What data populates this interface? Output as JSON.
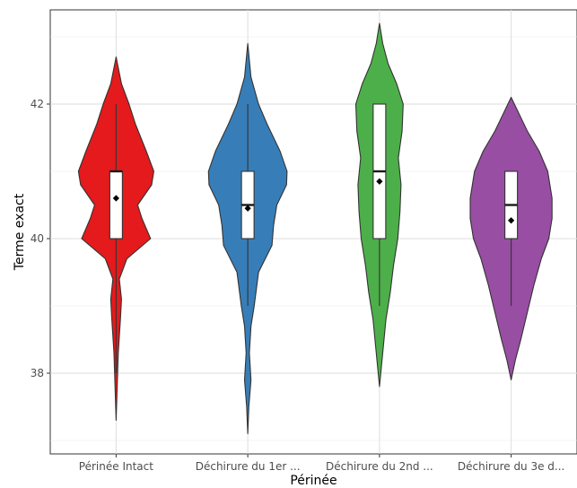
{
  "chart_data": {
    "type": "violin",
    "title": "",
    "xlabel": "Périnée",
    "ylabel": "Terme exact",
    "ylim": [
      36.8,
      43.4
    ],
    "yticks": [
      38,
      40,
      42
    ],
    "grid": true,
    "legend": "none",
    "categories": [
      "Périnée Intact",
      "Déchirure du 1er ...",
      "Déchirure du 2nd ...",
      "Déchirure du 3e d..."
    ],
    "series": [
      {
        "color": "#E41A1C",
        "range": [
          37.3,
          42.7
        ],
        "box": {
          "q1": 40,
          "median": 41,
          "q3": 41,
          "whisker_low": 38,
          "whisker_high": 42
        },
        "mean": 40.6,
        "density": [
          [
            37.3,
            0.0
          ],
          [
            37.8,
            0.02
          ],
          [
            38.3,
            0.04
          ],
          [
            38.8,
            0.08
          ],
          [
            39.1,
            0.1
          ],
          [
            39.4,
            0.06
          ],
          [
            39.7,
            0.2
          ],
          [
            40.0,
            0.64
          ],
          [
            40.3,
            0.48
          ],
          [
            40.5,
            0.4
          ],
          [
            40.8,
            0.66
          ],
          [
            41.0,
            0.7
          ],
          [
            41.3,
            0.56
          ],
          [
            41.7,
            0.36
          ],
          [
            42.0,
            0.24
          ],
          [
            42.3,
            0.1
          ],
          [
            42.7,
            0.0
          ]
        ]
      },
      {
        "color": "#377EB8",
        "range": [
          37.1,
          42.9
        ],
        "box": {
          "q1": 40,
          "median": 40.5,
          "q3": 41,
          "whisker_low": 39,
          "whisker_high": 42
        },
        "mean": 40.45,
        "density": [
          [
            37.1,
            0.0
          ],
          [
            37.5,
            0.02
          ],
          [
            37.9,
            0.06
          ],
          [
            38.3,
            0.03
          ],
          [
            38.7,
            0.06
          ],
          [
            39.0,
            0.12
          ],
          [
            39.5,
            0.2
          ],
          [
            39.9,
            0.45
          ],
          [
            40.2,
            0.48
          ],
          [
            40.5,
            0.54
          ],
          [
            40.8,
            0.72
          ],
          [
            41.0,
            0.73
          ],
          [
            41.3,
            0.6
          ],
          [
            41.7,
            0.36
          ],
          [
            42.0,
            0.2
          ],
          [
            42.4,
            0.06
          ],
          [
            42.9,
            0.0
          ]
        ]
      },
      {
        "color": "#4DAF4A",
        "range": [
          37.8,
          43.2
        ],
        "box": {
          "q1": 40,
          "median": 41,
          "q3": 42,
          "whisker_low": 39,
          "whisker_high": 42
        },
        "mean": 40.85,
        "density": [
          [
            37.8,
            0.0
          ],
          [
            38.3,
            0.06
          ],
          [
            38.8,
            0.12
          ],
          [
            39.2,
            0.2
          ],
          [
            39.6,
            0.26
          ],
          [
            40.0,
            0.34
          ],
          [
            40.4,
            0.38
          ],
          [
            40.8,
            0.4
          ],
          [
            41.2,
            0.35
          ],
          [
            41.6,
            0.42
          ],
          [
            42.0,
            0.44
          ],
          [
            42.3,
            0.32
          ],
          [
            42.6,
            0.16
          ],
          [
            42.9,
            0.06
          ],
          [
            43.2,
            0.0
          ]
        ]
      },
      {
        "color": "#984EA3",
        "range": [
          37.9,
          42.1
        ],
        "box": {
          "q1": 40,
          "median": 40.5,
          "q3": 41,
          "whisker_low": 39,
          "whisker_high": 41
        },
        "mean": 40.27,
        "density": [
          [
            37.9,
            0.0
          ],
          [
            38.2,
            0.08
          ],
          [
            38.5,
            0.18
          ],
          [
            38.9,
            0.3
          ],
          [
            39.3,
            0.42
          ],
          [
            39.7,
            0.56
          ],
          [
            40.0,
            0.7
          ],
          [
            40.3,
            0.76
          ],
          [
            40.6,
            0.76
          ],
          [
            41.0,
            0.68
          ],
          [
            41.3,
            0.52
          ],
          [
            41.6,
            0.3
          ],
          [
            41.9,
            0.12
          ],
          [
            42.1,
            0.0
          ]
        ]
      }
    ]
  }
}
